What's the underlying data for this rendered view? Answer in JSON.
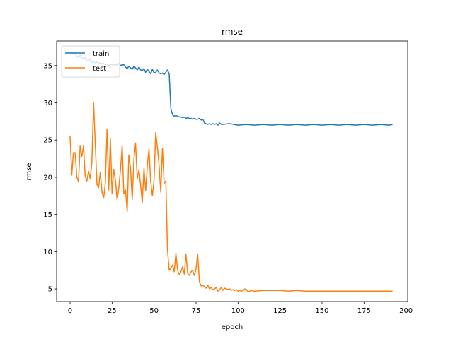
{
  "chart_data": {
    "type": "line",
    "title": "rmse",
    "xlabel": "epoch",
    "ylabel": "rmse",
    "xlim": [
      -8,
      201
    ],
    "ylim": [
      3.3,
      38.3
    ],
    "xticks": [
      0,
      25,
      50,
      75,
      100,
      125,
      150,
      175,
      200
    ],
    "yticks": [
      5,
      10,
      15,
      20,
      25,
      30,
      35
    ],
    "grid": false,
    "legend": "top-left",
    "colors": {
      "train": "#1f77b4",
      "test": "#ff7f0e"
    },
    "series": [
      {
        "name": "train",
        "color": "#1f77b4",
        "points": [
          [
            0,
            36.6
          ],
          [
            1,
            36.8
          ],
          [
            2,
            36.5
          ],
          [
            3,
            36.6
          ],
          [
            4,
            36.3
          ],
          [
            5,
            36.1
          ],
          [
            6,
            36.4
          ],
          [
            7,
            36.0
          ],
          [
            8,
            35.9
          ],
          [
            9,
            36.1
          ],
          [
            10,
            35.7
          ],
          [
            11,
            35.6
          ],
          [
            12,
            35.9
          ],
          [
            13,
            35.4
          ],
          [
            14,
            35.6
          ],
          [
            15,
            35.3
          ],
          [
            16,
            35.5
          ],
          [
            17,
            35.2
          ],
          [
            18,
            35.4
          ],
          [
            19,
            35.2
          ],
          [
            20,
            35.3
          ],
          [
            21,
            35.1
          ],
          [
            22,
            35.2
          ],
          [
            23,
            35.0
          ],
          [
            24,
            35.2
          ],
          [
            25,
            35.1
          ],
          [
            26,
            35.0
          ],
          [
            27,
            35.2
          ],
          [
            28,
            35.0
          ],
          [
            29,
            35.3
          ],
          [
            30,
            35.0
          ],
          [
            31,
            35.1
          ],
          [
            32,
            35.1
          ],
          [
            33,
            34.8
          ],
          [
            34,
            34.6
          ],
          [
            35,
            34.9
          ],
          [
            36,
            34.7
          ],
          [
            37,
            34.5
          ],
          [
            38,
            34.9
          ],
          [
            39,
            34.7
          ],
          [
            40,
            34.4
          ],
          [
            41,
            34.8
          ],
          [
            42,
            34.4
          ],
          [
            43,
            34.3
          ],
          [
            44,
            34.6
          ],
          [
            45,
            34.1
          ],
          [
            46,
            34.5
          ],
          [
            47,
            34.2
          ],
          [
            48,
            33.9
          ],
          [
            49,
            34.5
          ],
          [
            50,
            34.0
          ],
          [
            51,
            34.1
          ],
          [
            52,
            34.4
          ],
          [
            53,
            34.0
          ],
          [
            54,
            33.9
          ],
          [
            55,
            34.0
          ],
          [
            56,
            33.8
          ],
          [
            57,
            34.1
          ],
          [
            58,
            34.4
          ],
          [
            59,
            33.9
          ],
          [
            60,
            29.2
          ],
          [
            61,
            28.4
          ],
          [
            62,
            28.2
          ],
          [
            63,
            28.3
          ],
          [
            64,
            28.2
          ],
          [
            65,
            28.1
          ],
          [
            66,
            28.1
          ],
          [
            67,
            28.0
          ],
          [
            68,
            28.1
          ],
          [
            69,
            27.9
          ],
          [
            70,
            28.0
          ],
          [
            71,
            27.9
          ],
          [
            72,
            27.9
          ],
          [
            73,
            27.8
          ],
          [
            74,
            27.9
          ],
          [
            75,
            27.8
          ],
          [
            76,
            27.8
          ],
          [
            77,
            27.9
          ],
          [
            78,
            27.7
          ],
          [
            79,
            27.8
          ],
          [
            80,
            27.3
          ],
          [
            81,
            27.2
          ],
          [
            82,
            27.1
          ],
          [
            83,
            27.2
          ],
          [
            84,
            27.1
          ],
          [
            85,
            27.2
          ],
          [
            86,
            27.1
          ],
          [
            87,
            27.2
          ],
          [
            88,
            27.0
          ],
          [
            89,
            27.3
          ],
          [
            90,
            27.1
          ],
          [
            95,
            27.2
          ],
          [
            100,
            27.0
          ],
          [
            105,
            27.1
          ],
          [
            110,
            27.0
          ],
          [
            115,
            27.1
          ],
          [
            120,
            27.0
          ],
          [
            125,
            27.1
          ],
          [
            130,
            27.0
          ],
          [
            135,
            27.1
          ],
          [
            140,
            27.0
          ],
          [
            145,
            27.1
          ],
          [
            150,
            27.0
          ],
          [
            155,
            27.1
          ],
          [
            160,
            27.0
          ],
          [
            165,
            27.1
          ],
          [
            170,
            27.0
          ],
          [
            175,
            27.1
          ],
          [
            180,
            27.0
          ],
          [
            185,
            27.1
          ],
          [
            190,
            27.0
          ],
          [
            192,
            27.1
          ]
        ]
      },
      {
        "name": "test",
        "color": "#ff7f0e",
        "points": [
          [
            0,
            25.5
          ],
          [
            1,
            20.3
          ],
          [
            2,
            23.3
          ],
          [
            3,
            23.3
          ],
          [
            4,
            20.0
          ],
          [
            5,
            19.4
          ],
          [
            6,
            24.2
          ],
          [
            7,
            22.8
          ],
          [
            8,
            24.2
          ],
          [
            9,
            20.2
          ],
          [
            10,
            19.5
          ],
          [
            11,
            20.8
          ],
          [
            12,
            19.8
          ],
          [
            13,
            22.0
          ],
          [
            14,
            30.0
          ],
          [
            15,
            24.5
          ],
          [
            16,
            19.0
          ],
          [
            17,
            18.6
          ],
          [
            18,
            20.7
          ],
          [
            19,
            18.0
          ],
          [
            20,
            17.2
          ],
          [
            21,
            19.2
          ],
          [
            22,
            26.4
          ],
          [
            23,
            18.3
          ],
          [
            24,
            25.2
          ],
          [
            25,
            17.8
          ],
          [
            26,
            21.0
          ],
          [
            27,
            19.6
          ],
          [
            28,
            17.0
          ],
          [
            29,
            18.5
          ],
          [
            30,
            21.0
          ],
          [
            31,
            24.2
          ],
          [
            32,
            17.8
          ],
          [
            33,
            18.3
          ],
          [
            34,
            15.4
          ],
          [
            35,
            23.0
          ],
          [
            36,
            21.2
          ],
          [
            37,
            17.0
          ],
          [
            38,
            22.4
          ],
          [
            39,
            24.6
          ],
          [
            40,
            19.8
          ],
          [
            41,
            21.0
          ],
          [
            42,
            18.9
          ],
          [
            43,
            16.6
          ],
          [
            44,
            21.2
          ],
          [
            45,
            18.2
          ],
          [
            46,
            21.6
          ],
          [
            47,
            23.8
          ],
          [
            48,
            19.4
          ],
          [
            49,
            17.5
          ],
          [
            50,
            19.6
          ],
          [
            51,
            26.0
          ],
          [
            52,
            24.0
          ],
          [
            53,
            21.5
          ],
          [
            54,
            18.0
          ],
          [
            55,
            23.9
          ],
          [
            56,
            19.2
          ],
          [
            57,
            19.5
          ],
          [
            58,
            10.3
          ],
          [
            59,
            7.5
          ],
          [
            60,
            7.8
          ],
          [
            61,
            8.2
          ],
          [
            62,
            7.3
          ],
          [
            63,
            9.8
          ],
          [
            64,
            7.5
          ],
          [
            65,
            6.9
          ],
          [
            66,
            7.3
          ],
          [
            67,
            8.0
          ],
          [
            68,
            7.0
          ],
          [
            69,
            9.7
          ],
          [
            70,
            7.1
          ],
          [
            71,
            6.8
          ],
          [
            72,
            7.3
          ],
          [
            73,
            7.5
          ],
          [
            74,
            6.8
          ],
          [
            75,
            7.7
          ],
          [
            76,
            9.7
          ],
          [
            77,
            6.0
          ],
          [
            78,
            5.4
          ],
          [
            79,
            5.5
          ],
          [
            80,
            5.3
          ],
          [
            81,
            5.1
          ],
          [
            82,
            5.5
          ],
          [
            83,
            5.0
          ],
          [
            84,
            5.2
          ],
          [
            85,
            4.9
          ],
          [
            86,
            5.0
          ],
          [
            87,
            5.2
          ],
          [
            88,
            4.7
          ],
          [
            89,
            4.9
          ],
          [
            90,
            5.2
          ],
          [
            91,
            4.8
          ],
          [
            92,
            5.1
          ],
          [
            93,
            5.0
          ],
          [
            94,
            4.9
          ],
          [
            95,
            5.0
          ],
          [
            96,
            4.8
          ],
          [
            97,
            4.9
          ],
          [
            98,
            4.8
          ],
          [
            99,
            4.9
          ],
          [
            100,
            4.7
          ],
          [
            101,
            4.8
          ],
          [
            102,
            4.7
          ],
          [
            103,
            4.8
          ],
          [
            104,
            5.0
          ],
          [
            105,
            4.9
          ],
          [
            106,
            4.6
          ],
          [
            107,
            4.7
          ],
          [
            108,
            4.8
          ],
          [
            109,
            4.7
          ],
          [
            110,
            4.7
          ],
          [
            115,
            4.8
          ],
          [
            120,
            4.8
          ],
          [
            125,
            4.8
          ],
          [
            130,
            4.7
          ],
          [
            135,
            4.8
          ],
          [
            140,
            4.7
          ],
          [
            145,
            4.7
          ],
          [
            150,
            4.7
          ],
          [
            155,
            4.7
          ],
          [
            160,
            4.7
          ],
          [
            165,
            4.7
          ],
          [
            170,
            4.7
          ],
          [
            175,
            4.7
          ],
          [
            180,
            4.7
          ],
          [
            185,
            4.7
          ],
          [
            190,
            4.7
          ],
          [
            192,
            4.7
          ]
        ]
      }
    ]
  }
}
